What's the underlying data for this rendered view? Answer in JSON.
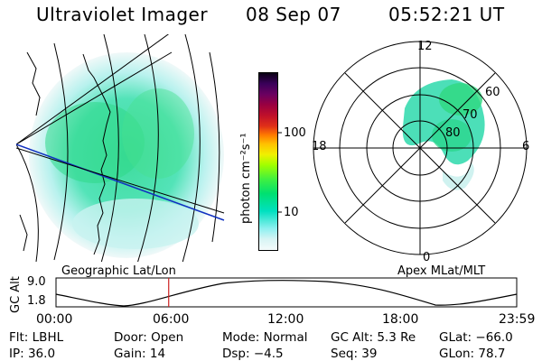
{
  "header": {
    "instrument": "Ultraviolet Imager",
    "date": "08 Sep 07",
    "time": "05:52:21 UT"
  },
  "colorbar": {
    "label": "photon cm⁻²s⁻¹",
    "ticks": [
      "100",
      "10"
    ],
    "colors": [
      "#0a0014",
      "#3a005a",
      "#6a0060",
      "#9a0040",
      "#c0102a",
      "#e03018",
      "#ff7a00",
      "#ffc000",
      "#f0f000",
      "#a0ff00",
      "#40f040",
      "#00e070",
      "#00e0c0",
      "#90f0f0",
      "#d8f4f4",
      "#f4fbfb"
    ]
  },
  "panels": {
    "geo_label": "Geographic Lat/Lon",
    "polar_label": "Apex MLat/MLT",
    "polar_mlt": [
      "12",
      "18",
      "6",
      "0"
    ],
    "polar_mlat": [
      "60",
      "70",
      "80"
    ]
  },
  "altitude_plot": {
    "ylabel": "GC Alt",
    "y_ticks": [
      "9.0",
      "1.8"
    ],
    "x_ticks": [
      "00:00",
      "06:00",
      "12:00",
      "18:00",
      "23:59"
    ],
    "marker_time_hours": 5.87,
    "marker_color": "#cc2020"
  },
  "info": {
    "row1": [
      {
        "label": "Flt:",
        "value": "LBHL"
      },
      {
        "label": "Door:",
        "value": "Open"
      },
      {
        "label": "Mode:",
        "value": "Normal"
      },
      {
        "label": "GC Alt:",
        "value": "5.3 Re"
      },
      {
        "label": "GLat:",
        "value": "−66.0"
      }
    ],
    "row2": [
      {
        "label": "IP:",
        "value": "36.0"
      },
      {
        "label": "Gain:",
        "value": "14"
      },
      {
        "label": "Dsp:",
        "value": "−4.5"
      },
      {
        "label": "Seq:",
        "value": "39"
      },
      {
        "label": "GLon:",
        "value": "78.7"
      }
    ]
  }
}
